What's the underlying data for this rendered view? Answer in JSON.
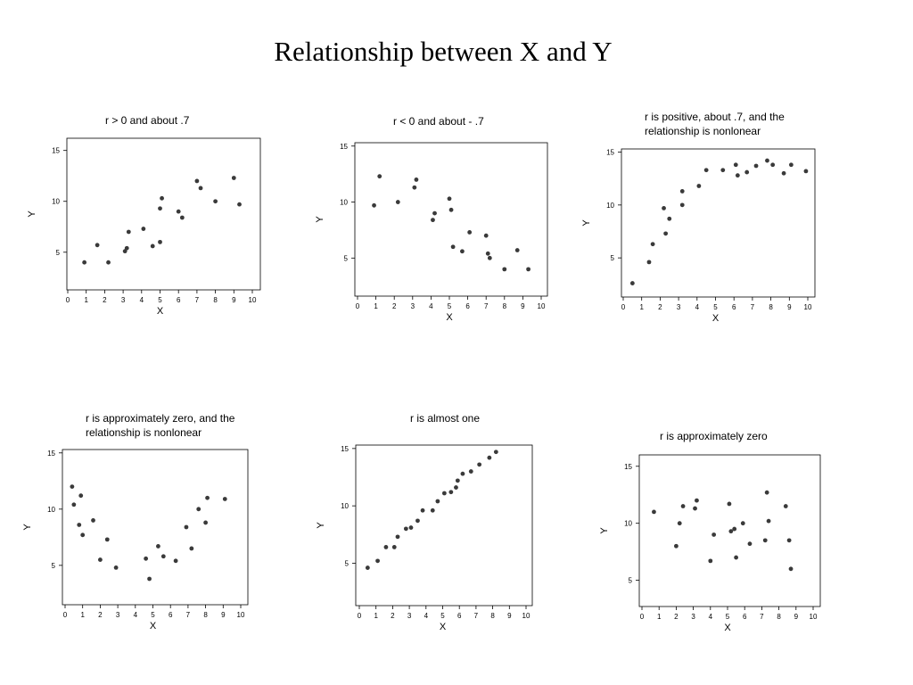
{
  "page": {
    "title": "Relationship between X and Y"
  },
  "colors": {
    "point": "#3a3a3a",
    "axis": "#000000"
  },
  "chart_data": [
    {
      "type": "scatter",
      "title": "r > 0 and about .7",
      "xlabel": "X",
      "ylabel": "Y",
      "xlim": [
        0,
        10
      ],
      "ylim": [
        1.3,
        16.2
      ],
      "xticks": [
        0,
        1,
        2,
        3,
        4,
        5,
        6,
        7,
        8,
        9,
        10
      ],
      "yticks": [
        5,
        10,
        15
      ],
      "grid": false,
      "points": [
        [
          0.9,
          4.0
        ],
        [
          1.6,
          5.7
        ],
        [
          2.2,
          4.0
        ],
        [
          3.1,
          5.1
        ],
        [
          3.2,
          5.4
        ],
        [
          3.3,
          7.0
        ],
        [
          4.1,
          7.3
        ],
        [
          4.6,
          5.6
        ],
        [
          5.0,
          6.0
        ],
        [
          5.0,
          9.3
        ],
        [
          5.1,
          10.3
        ],
        [
          6.0,
          9.0
        ],
        [
          6.2,
          8.4
        ],
        [
          7.0,
          12.0
        ],
        [
          7.2,
          11.3
        ],
        [
          8.0,
          10.0
        ],
        [
          9.0,
          12.3
        ],
        [
          9.3,
          9.7
        ]
      ]
    },
    {
      "type": "scatter",
      "title": "r < 0 and about - .7",
      "xlabel": "X",
      "ylabel": "Y",
      "xlim": [
        0,
        10
      ],
      "ylim": [
        1.6,
        15.3
      ],
      "xticks": [
        0,
        1,
        2,
        3,
        4,
        5,
        6,
        7,
        8,
        9,
        10
      ],
      "yticks": [
        5,
        10,
        15
      ],
      "grid": false,
      "points": [
        [
          0.9,
          9.7
        ],
        [
          1.2,
          12.3
        ],
        [
          2.2,
          10.0
        ],
        [
          3.1,
          11.3
        ],
        [
          3.2,
          12.0
        ],
        [
          4.1,
          8.4
        ],
        [
          4.2,
          9.0
        ],
        [
          5.0,
          10.3
        ],
        [
          5.1,
          9.3
        ],
        [
          5.2,
          6.0
        ],
        [
          5.7,
          5.6
        ],
        [
          6.1,
          7.3
        ],
        [
          7.0,
          7.0
        ],
        [
          7.1,
          5.4
        ],
        [
          7.2,
          5.0
        ],
        [
          8.0,
          4.0
        ],
        [
          8.7,
          5.7
        ],
        [
          9.3,
          4.0
        ]
      ]
    },
    {
      "type": "scatter",
      "title": "r is positive, about .7, and the relationship is nonlonear",
      "xlabel": "X",
      "ylabel": "Y",
      "xlim": [
        0,
        10
      ],
      "ylim": [
        1.3,
        15.3
      ],
      "xticks": [
        0,
        1,
        2,
        3,
        4,
        5,
        6,
        7,
        8,
        9,
        10
      ],
      "yticks": [
        5,
        10,
        15
      ],
      "grid": false,
      "points": [
        [
          0.5,
          2.6
        ],
        [
          1.4,
          4.6
        ],
        [
          1.6,
          6.3
        ],
        [
          2.2,
          9.7
        ],
        [
          2.3,
          7.3
        ],
        [
          2.5,
          8.7
        ],
        [
          3.2,
          10.0
        ],
        [
          3.2,
          11.3
        ],
        [
          4.1,
          11.8
        ],
        [
          4.5,
          13.3
        ],
        [
          5.4,
          13.3
        ],
        [
          6.1,
          13.8
        ],
        [
          6.2,
          12.8
        ],
        [
          6.7,
          13.1
        ],
        [
          7.2,
          13.7
        ],
        [
          7.8,
          14.2
        ],
        [
          8.1,
          13.8
        ],
        [
          8.7,
          13.0
        ],
        [
          9.1,
          13.8
        ],
        [
          9.9,
          13.2
        ]
      ]
    },
    {
      "type": "scatter",
      "title": "r is approximately zero, and the relationship is nonlonear",
      "xlabel": "X",
      "ylabel": "Y",
      "xlim": [
        0,
        10
      ],
      "ylim": [
        1.5,
        15.3
      ],
      "xticks": [
        0,
        1,
        2,
        3,
        4,
        5,
        6,
        7,
        8,
        9,
        10
      ],
      "yticks": [
        5,
        10,
        15
      ],
      "grid": false,
      "points": [
        [
          0.4,
          12.0
        ],
        [
          0.5,
          10.4
        ],
        [
          0.8,
          8.6
        ],
        [
          0.9,
          11.2
        ],
        [
          1.0,
          7.7
        ],
        [
          1.6,
          9.0
        ],
        [
          2.0,
          5.5
        ],
        [
          2.4,
          7.3
        ],
        [
          2.9,
          4.8
        ],
        [
          4.6,
          5.6
        ],
        [
          4.8,
          3.8
        ],
        [
          5.3,
          6.7
        ],
        [
          5.6,
          5.8
        ],
        [
          6.3,
          5.4
        ],
        [
          6.9,
          8.4
        ],
        [
          7.2,
          6.5
        ],
        [
          7.6,
          10.0
        ],
        [
          8.0,
          8.8
        ],
        [
          8.1,
          11.0
        ],
        [
          9.1,
          10.9
        ]
      ]
    },
    {
      "type": "scatter",
      "title": "r is almost one",
      "xlabel": "X",
      "ylabel": "Y",
      "xlim": [
        0,
        10
      ],
      "ylim": [
        1.3,
        15.3
      ],
      "xticks": [
        0,
        1,
        2,
        3,
        4,
        5,
        6,
        7,
        8,
        9,
        10
      ],
      "yticks": [
        5,
        10,
        15
      ],
      "grid": false,
      "points": [
        [
          0.5,
          4.6
        ],
        [
          1.1,
          5.2
        ],
        [
          1.6,
          6.4
        ],
        [
          2.1,
          6.4
        ],
        [
          2.3,
          7.3
        ],
        [
          2.8,
          8.0
        ],
        [
          3.1,
          8.1
        ],
        [
          3.5,
          8.7
        ],
        [
          3.8,
          9.6
        ],
        [
          4.4,
          9.6
        ],
        [
          4.7,
          10.4
        ],
        [
          5.1,
          11.1
        ],
        [
          5.5,
          11.2
        ],
        [
          5.8,
          11.6
        ],
        [
          5.9,
          12.2
        ],
        [
          6.2,
          12.8
        ],
        [
          6.7,
          13.0
        ],
        [
          7.2,
          13.6
        ],
        [
          7.8,
          14.2
        ],
        [
          8.2,
          14.7
        ]
      ]
    },
    {
      "type": "scatter",
      "title": "r is approximately zero",
      "xlabel": "X",
      "ylabel": "Y",
      "xlim": [
        0,
        10
      ],
      "ylim": [
        2.7,
        16.0
      ],
      "xticks": [
        0,
        1,
        2,
        3,
        4,
        5,
        6,
        7,
        8,
        9,
        10
      ],
      "yticks": [
        5,
        10,
        15
      ],
      "grid": false,
      "points": [
        [
          0.7,
          11.0
        ],
        [
          2.0,
          8.0
        ],
        [
          2.2,
          10.0
        ],
        [
          2.4,
          11.5
        ],
        [
          3.1,
          11.3
        ],
        [
          3.2,
          12.0
        ],
        [
          4.0,
          6.7
        ],
        [
          4.2,
          9.0
        ],
        [
          5.1,
          11.7
        ],
        [
          5.2,
          9.3
        ],
        [
          5.4,
          9.5
        ],
        [
          5.5,
          7.0
        ],
        [
          5.9,
          10.0
        ],
        [
          6.3,
          8.2
        ],
        [
          7.2,
          8.5
        ],
        [
          7.3,
          12.7
        ],
        [
          7.4,
          10.2
        ],
        [
          8.4,
          11.5
        ],
        [
          8.6,
          8.5
        ],
        [
          8.7,
          6.0
        ]
      ]
    }
  ]
}
